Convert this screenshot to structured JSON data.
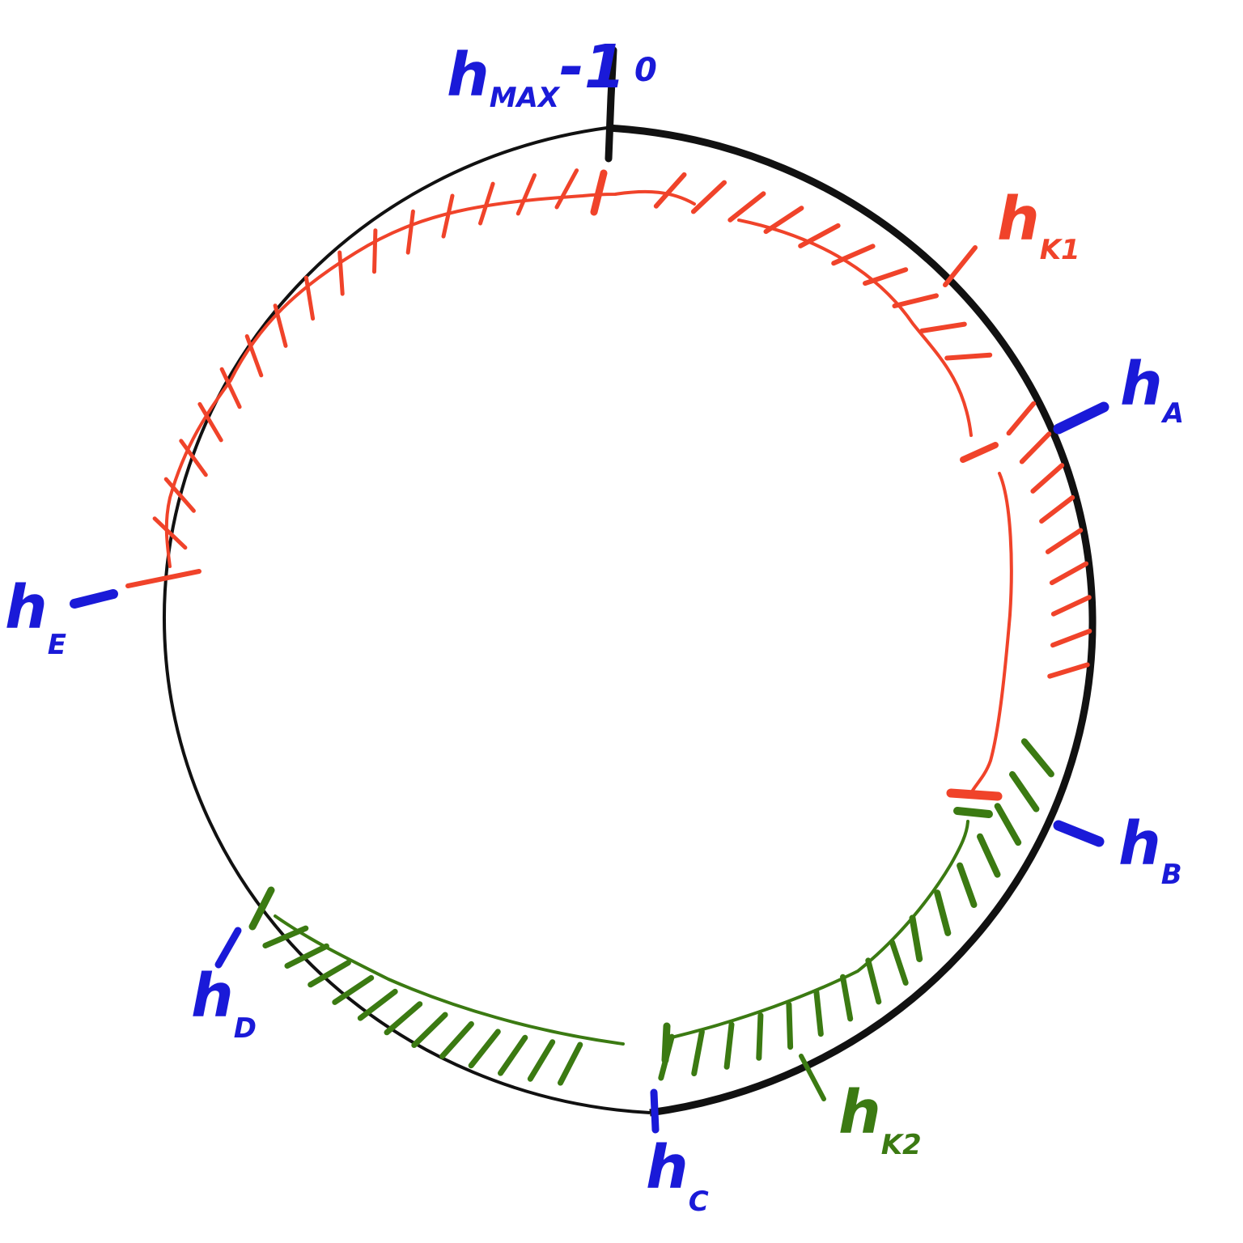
{
  "colors": {
    "ring": "#111111",
    "hash_marks": "#1a1ad8",
    "key1": "#f0432a",
    "key2": "#3b7a12",
    "background": "#ffffff"
  },
  "labels": {
    "hmax": {
      "base": "h",
      "sub": "MAX",
      "suffix": "-1"
    },
    "zero": "0",
    "hA": {
      "base": "h",
      "sub": "A"
    },
    "hB": {
      "base": "h",
      "sub": "B"
    },
    "hC": {
      "base": "h",
      "sub": "C"
    },
    "hD": {
      "base": "h",
      "sub": "D"
    },
    "hE": {
      "base": "h",
      "sub": "E"
    },
    "hK1": {
      "base": "h",
      "sub": "K1"
    },
    "hK2": {
      "base": "h",
      "sub": "K2"
    }
  }
}
